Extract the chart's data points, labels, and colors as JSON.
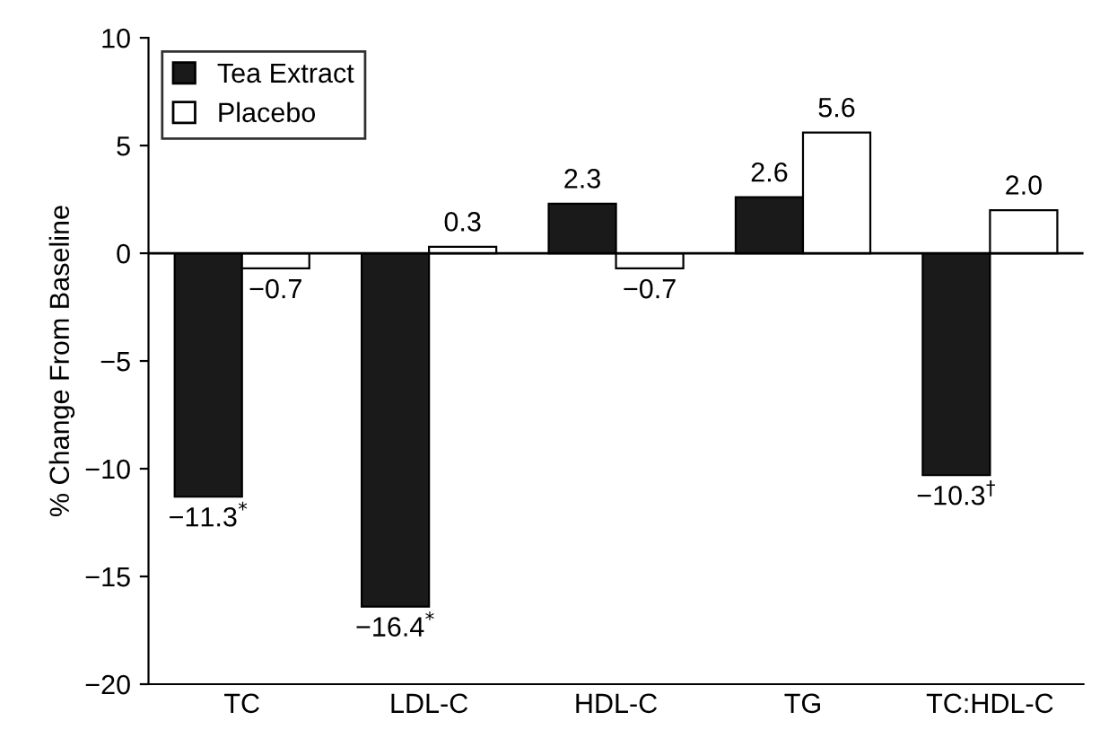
{
  "chart_data": {
    "type": "bar",
    "ylabel": "% Change From Baseline",
    "categories": [
      "TC",
      "LDL-C",
      "HDL-C",
      "TG",
      "TC:HDL-C"
    ],
    "series": [
      {
        "name": "Tea Extract",
        "color": "#1a1a1a",
        "values": [
          -11.3,
          -16.4,
          2.3,
          2.6,
          -10.3
        ],
        "value_labels": [
          "−11.3$^{*}$",
          "−16.4$^{*}$",
          "2.3",
          "2.6",
          "−10.3$^{†}$"
        ]
      },
      {
        "name": "Placebo",
        "color": "#ffffff",
        "values": [
          -0.7,
          0.3,
          -0.7,
          5.6,
          2.0
        ],
        "value_labels": [
          "−0.7",
          "0.3",
          "−0.7",
          "5.6",
          "2.0"
        ]
      }
    ],
    "ylim": [
      -20,
      10
    ],
    "yticks": [
      {
        "value": -20,
        "label": "−20"
      },
      {
        "value": -15,
        "label": "−15"
      },
      {
        "value": -10,
        "label": "−10"
      },
      {
        "value": -5,
        "label": "−5"
      },
      0,
      5,
      10
    ],
    "ref_lines": [
      {
        "axis": "y",
        "value": 0,
        "color": "#000000"
      }
    ],
    "grid": false,
    "legend": "top left"
  }
}
